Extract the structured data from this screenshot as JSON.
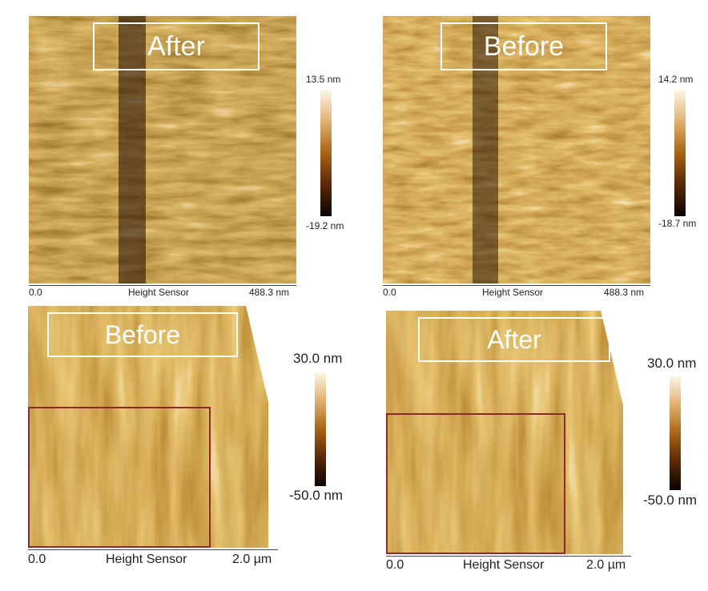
{
  "panels": {
    "top_left": {
      "label": "After",
      "scale_max": "13.5 nm",
      "scale_min": "-19.2 nm",
      "axis_start": "0.0",
      "axis_title": "Height Sensor",
      "axis_end": "488.3 nm"
    },
    "top_right": {
      "label": "Before",
      "scale_max": "14.2 nm",
      "scale_min": "-18.7 nm",
      "axis_start": "0.0",
      "axis_title": "Height Sensor",
      "axis_end": "488.3 nm"
    },
    "bottom_left": {
      "label": "Before",
      "scale_max": "30.0 nm",
      "scale_min": "-50.0 nm",
      "axis_start": "0.0",
      "axis_title": "Height Sensor",
      "axis_end": "2.0 µm"
    },
    "bottom_right": {
      "label": "After",
      "scale_max": "30.0 nm",
      "scale_min": "-50.0 nm",
      "axis_start": "0.0",
      "axis_title": "Height Sensor",
      "axis_end": "2.0 µm"
    }
  },
  "colors": {
    "afm_dark": "#2a1100",
    "afm_mid": "#a86414",
    "afm_light": "#f6e6b8",
    "roi": "#8b2a2a"
  }
}
